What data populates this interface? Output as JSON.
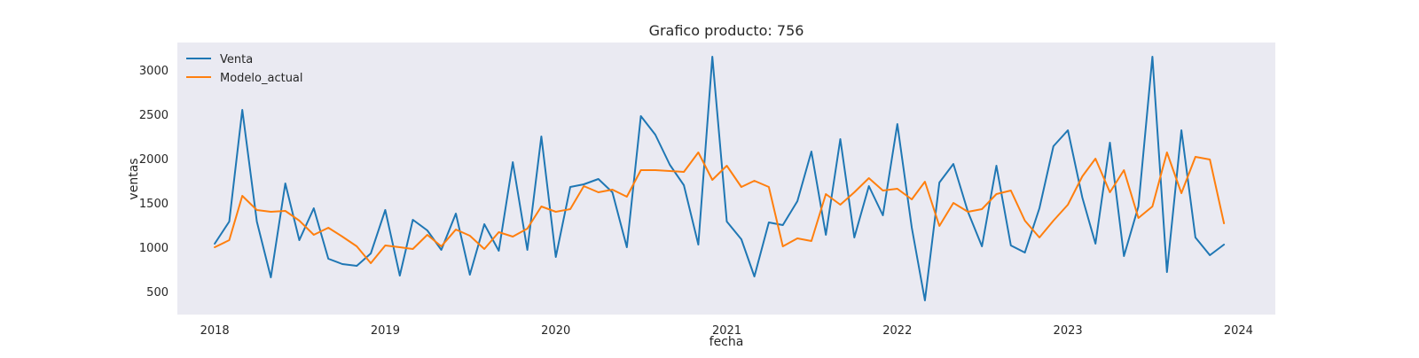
{
  "chart_data": {
    "type": "line",
    "title": "Grafico producto: 756",
    "xlabel": "fecha",
    "ylabel": "ventas",
    "x_ticks": [
      "2018",
      "2019",
      "2020",
      "2021",
      "2022",
      "2023",
      "2024"
    ],
    "y_ticks": [
      500,
      1000,
      1500,
      2000,
      2500,
      3000
    ],
    "xlim": [
      "2017-10-13",
      "2024-03-20"
    ],
    "ylim": [
      240,
      3310
    ],
    "grid": false,
    "legend": "top-left",
    "x": [
      "2018-01",
      "2018-02",
      "2018-03",
      "2018-04",
      "2018-05",
      "2018-06",
      "2018-07",
      "2018-08",
      "2018-09",
      "2018-10",
      "2018-11",
      "2018-12",
      "2019-01",
      "2019-02",
      "2019-03",
      "2019-04",
      "2019-05",
      "2019-06",
      "2019-07",
      "2019-08",
      "2019-09",
      "2019-10",
      "2019-11",
      "2019-12",
      "2020-01",
      "2020-02",
      "2020-03",
      "2020-04",
      "2020-05",
      "2020-06",
      "2020-07",
      "2020-08",
      "2020-09",
      "2020-10",
      "2020-11",
      "2020-12",
      "2021-01",
      "2021-02",
      "2021-03",
      "2021-04",
      "2021-05",
      "2021-06",
      "2021-07",
      "2021-08",
      "2021-09",
      "2021-10",
      "2021-11",
      "2021-12",
      "2022-01",
      "2022-02",
      "2022-03",
      "2022-04",
      "2022-05",
      "2022-06",
      "2022-07",
      "2022-08",
      "2022-09",
      "2022-10",
      "2022-11",
      "2022-12",
      "2023-01",
      "2023-02",
      "2023-03",
      "2023-04",
      "2023-05",
      "2023-06",
      "2023-07",
      "2023-08",
      "2023-09",
      "2023-10",
      "2023-11",
      "2023-12"
    ],
    "series": [
      {
        "name": "Venta",
        "color": "#1f77b4",
        "values": [
          1040,
          1290,
          2550,
          1290,
          660,
          1720,
          1080,
          1440,
          870,
          810,
          790,
          930,
          1420,
          680,
          1310,
          1190,
          970,
          1380,
          690,
          1260,
          960,
          1960,
          970,
          2250,
          890,
          1680,
          1710,
          1770,
          1620,
          1000,
          2480,
          2270,
          1930,
          1700,
          1030,
          3150,
          1290,
          1090,
          670,
          1280,
          1250,
          1520,
          2080,
          1140,
          2220,
          1110,
          1690,
          1360,
          2390,
          1220,
          400,
          1730,
          1940,
          1400,
          1010,
          1920,
          1020,
          940,
          1440,
          2140,
          2320,
          1560,
          1040,
          2180,
          900,
          1460,
          3150,
          720,
          2320,
          1110,
          910,
          1030
        ]
      },
      {
        "name": "Modelo_actual",
        "color": "#ff7f0e",
        "values": [
          1000,
          1080,
          1580,
          1420,
          1400,
          1410,
          1300,
          1140,
          1220,
          1120,
          1010,
          820,
          1020,
          1000,
          980,
          1140,
          1010,
          1200,
          1130,
          980,
          1170,
          1120,
          1210,
          1460,
          1400,
          1430,
          1690,
          1620,
          1650,
          1570,
          1870,
          1870,
          1860,
          1850,
          2070,
          1760,
          1920,
          1680,
          1750,
          1680,
          1010,
          1100,
          1070,
          1600,
          1480,
          1620,
          1780,
          1640,
          1660,
          1540,
          1740,
          1240,
          1500,
          1400,
          1430,
          1600,
          1640,
          1300,
          1110,
          1300,
          1480,
          1800,
          2000,
          1620,
          1870,
          1330,
          1460,
          2070,
          1610,
          2020,
          1990,
          1270
        ]
      }
    ]
  }
}
